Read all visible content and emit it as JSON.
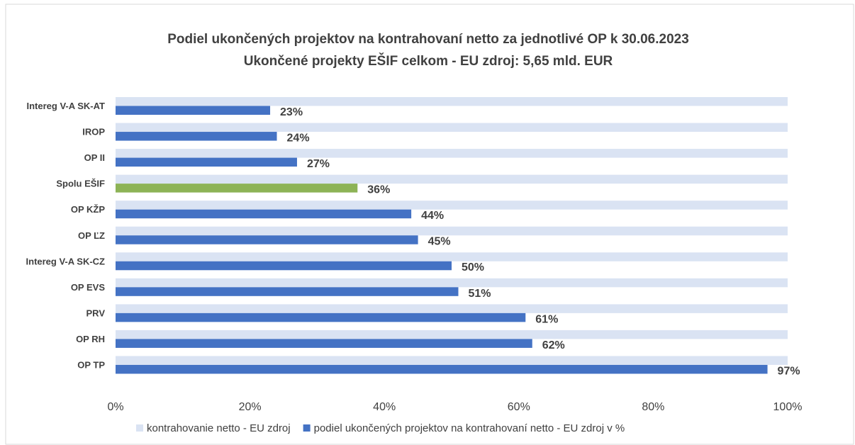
{
  "chart_data": {
    "type": "hbar",
    "title": "Podiel ukončených projektov na kontrahovaní netto za jednotlivé OP k 30.06.2023",
    "subtitle": "Ukončené projekty EŠIF celkom - EU zdroj: 5,65 mld. EUR",
    "categories": [
      "Intereg V-A SK-AT",
      "IROP",
      "OP II",
      "Spolu EŠIF",
      "OP KŽP",
      "OP ĽZ",
      "Intereg V-A SK-CZ",
      "OP EVS",
      "PRV",
      "OP RH",
      "OP TP"
    ],
    "series": [
      {
        "name": "kontrahovanie netto - EU zdroj",
        "color": "#dae3f3",
        "values": [
          100,
          100,
          100,
          100,
          100,
          100,
          100,
          100,
          100,
          100,
          100
        ]
      },
      {
        "name": "podiel ukončených projektov na kontrahovaní netto - EU zdroj v %",
        "color": "#4472c4",
        "colors": [
          "#4472c4",
          "#4472c4",
          "#4472c4",
          "#8db356",
          "#4472c4",
          "#4472c4",
          "#4472c4",
          "#4472c4",
          "#4472c4",
          "#4472c4",
          "#4472c4"
        ],
        "values": [
          23,
          24,
          27,
          36,
          44,
          45,
          50,
          51,
          61,
          62,
          97
        ],
        "value_labels": [
          "23%",
          "24%",
          "27%",
          "36%",
          "44%",
          "45%",
          "50%",
          "51%",
          "61%",
          "62%",
          "97%"
        ]
      }
    ],
    "xlim": [
      0,
      100
    ],
    "xticks": [
      {
        "value": 0,
        "label": "0%"
      },
      {
        "value": 20,
        "label": "20%"
      },
      {
        "value": 40,
        "label": "40%"
      },
      {
        "value": 60,
        "label": "60%"
      },
      {
        "value": 80,
        "label": "80%"
      },
      {
        "value": 100,
        "label": "100%"
      }
    ],
    "grid": false,
    "legend": "bottom"
  }
}
